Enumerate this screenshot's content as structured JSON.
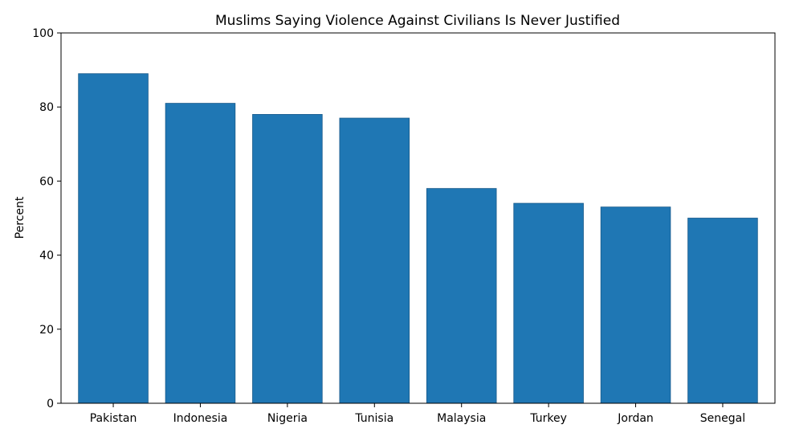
{
  "chart_data": {
    "type": "bar",
    "title": "Muslims Saying Violence Against Civilians Is Never Justified",
    "xlabel": "",
    "ylabel": "Percent",
    "categories": [
      "Pakistan",
      "Indonesia",
      "Nigeria",
      "Tunisia",
      "Malaysia",
      "Turkey",
      "Jordan",
      "Senegal"
    ],
    "values": [
      89,
      81,
      78,
      77,
      58,
      54,
      53,
      50
    ],
    "ylim": [
      0,
      100
    ],
    "yticks": [
      0,
      20,
      40,
      60,
      80,
      100
    ],
    "grid": false,
    "legend": "none",
    "bar_color": "#1f77b4",
    "bar_edge_color": "#17598a"
  }
}
